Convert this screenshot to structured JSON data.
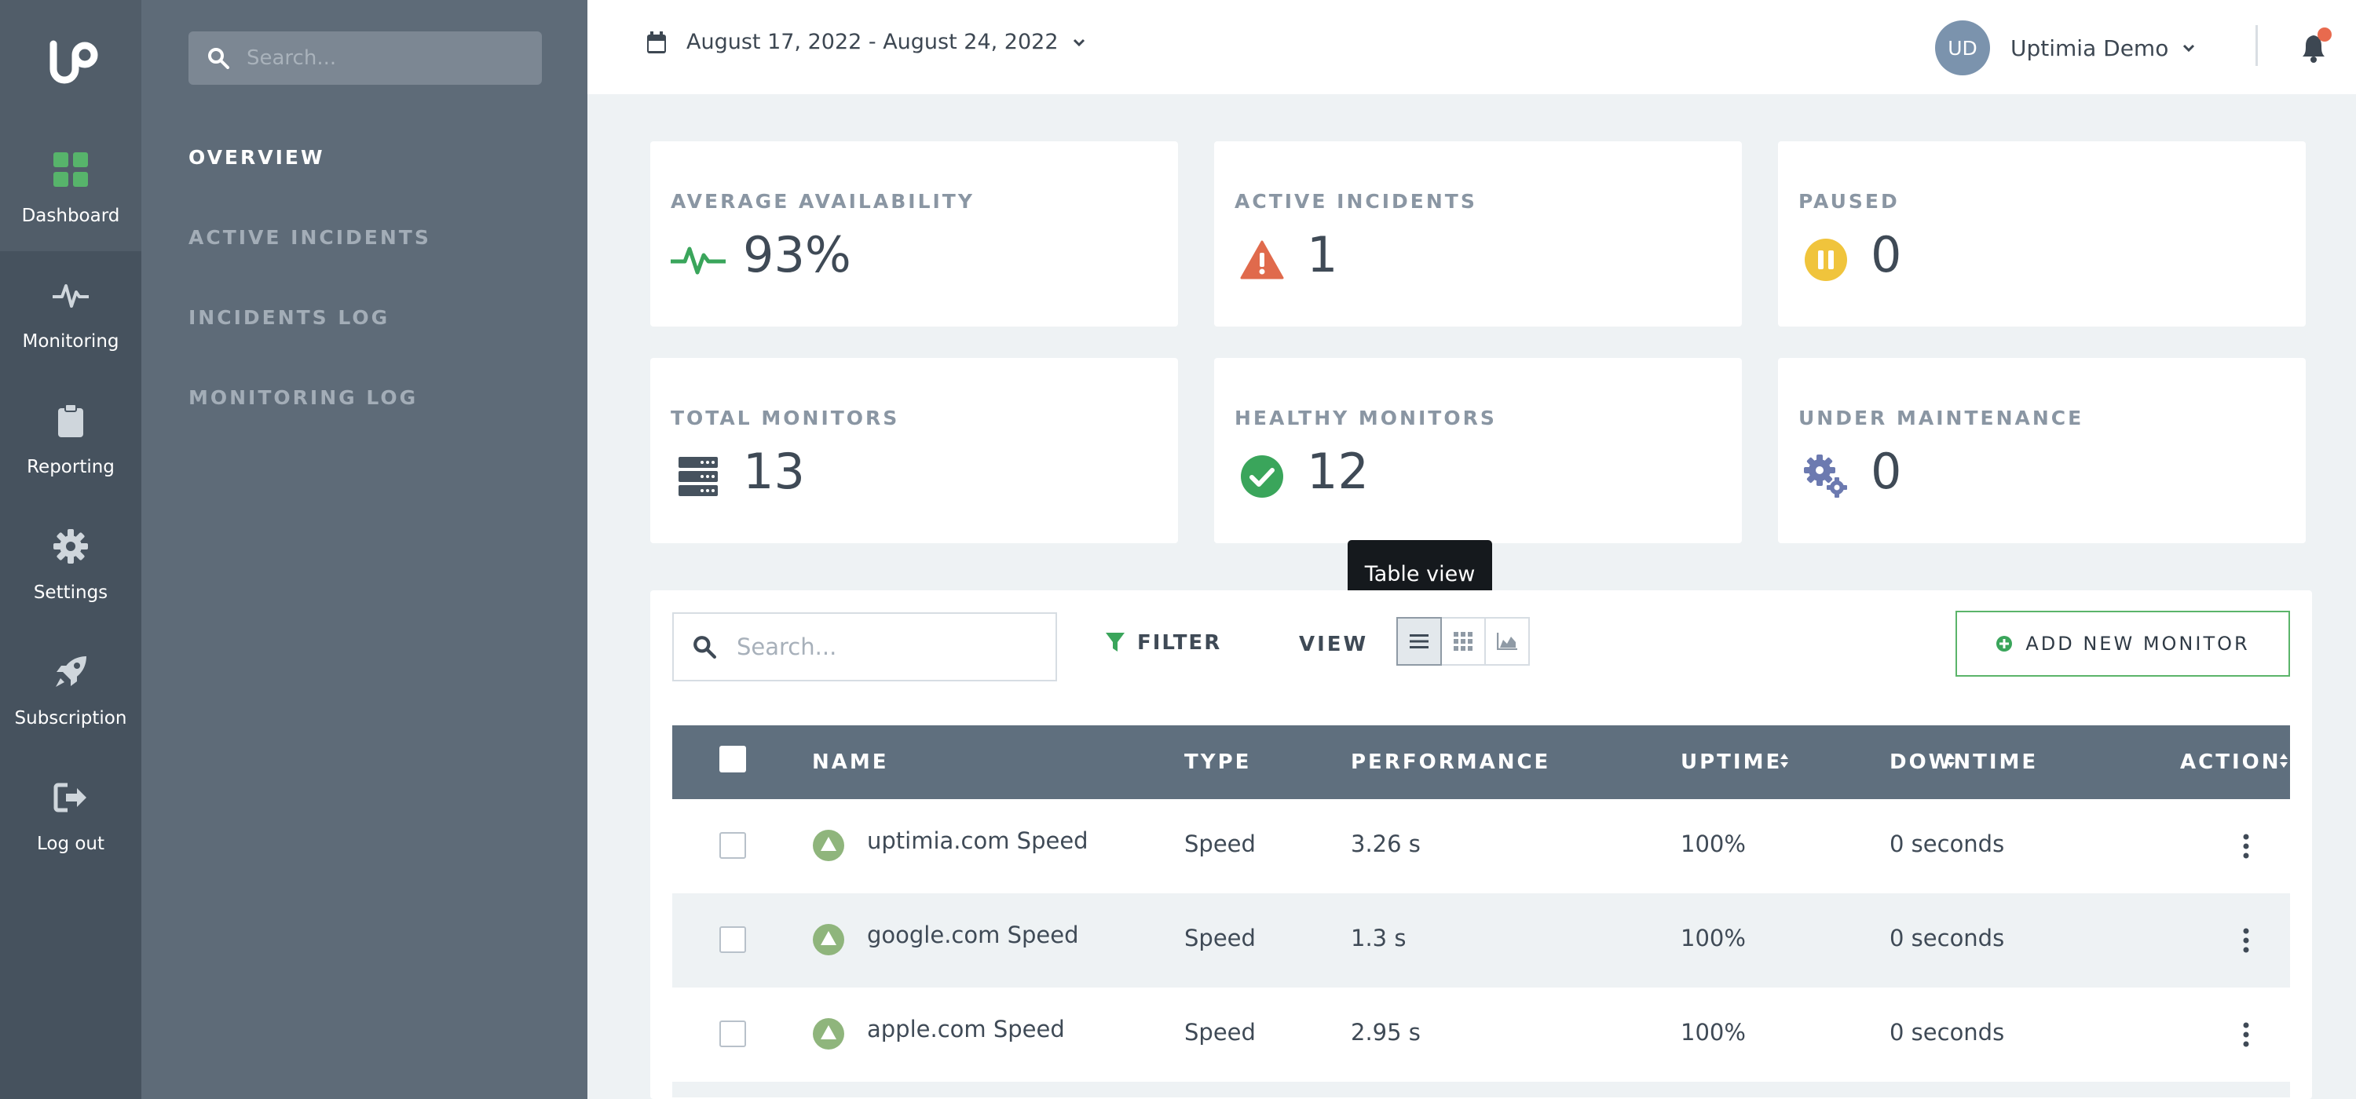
{
  "rail": {
    "items": [
      {
        "label": "Dashboard",
        "icon": "dashboard-icon"
      },
      {
        "label": "Monitoring",
        "icon": "pulse-icon"
      },
      {
        "label": "Reporting",
        "icon": "clipboard-icon"
      },
      {
        "label": "Settings",
        "icon": "gear-icon"
      },
      {
        "label": "Subscription",
        "icon": "rocket-icon"
      },
      {
        "label": "Log out",
        "icon": "logout-icon"
      }
    ]
  },
  "subnav": {
    "search_placeholder": "Search...",
    "links": [
      "OVERVIEW",
      "ACTIVE INCIDENTS",
      "INCIDENTS LOG",
      "MONITORING LOG"
    ]
  },
  "topbar": {
    "date_range": "August 17, 2022 - August 24, 2022",
    "user_initials": "UD",
    "user_name": "Uptimia Demo"
  },
  "cards": [
    {
      "title": "AVERAGE AVAILABILITY",
      "value": "93%",
      "icon": "pulse-icon"
    },
    {
      "title": "ACTIVE INCIDENTS",
      "value": "1",
      "icon": "warning-icon"
    },
    {
      "title": "PAUSED",
      "value": "0",
      "icon": "pause-icon"
    },
    {
      "title": "TOTAL MONITORS",
      "value": "13",
      "icon": "server-icon"
    },
    {
      "title": "HEALTHY MONITORS",
      "value": "12",
      "icon": "check-circle-icon"
    },
    {
      "title": "UNDER MAINTENANCE",
      "value": "0",
      "icon": "gears-icon"
    }
  ],
  "toolbar": {
    "search_placeholder": "Search...",
    "filter_label": "FILTER",
    "view_label": "VIEW",
    "tooltip": "Table view",
    "add_label": "ADD NEW MONITOR"
  },
  "table": {
    "columns": [
      "NAME",
      "TYPE",
      "PERFORMANCE",
      "UPTIME",
      "DOWNTIME",
      "ACTION"
    ],
    "rows": [
      {
        "name": "uptimia.com Speed",
        "type": "Speed",
        "performance": "3.26 s",
        "uptime": "100%",
        "downtime": "0 seconds"
      },
      {
        "name": "google.com Speed",
        "type": "Speed",
        "performance": "1.3 s",
        "uptime": "100%",
        "downtime": "0 seconds"
      },
      {
        "name": "apple.com Speed",
        "type": "Speed",
        "performance": "2.95 s",
        "uptime": "100%",
        "downtime": "0 seconds"
      }
    ]
  },
  "colors": {
    "rail": "#46525e",
    "subnav": "#5e6b78",
    "accent_green": "#5bb46a",
    "warning": "#e06a4c",
    "paused": "#f0c43c",
    "maintenance": "#6c7ab0"
  }
}
